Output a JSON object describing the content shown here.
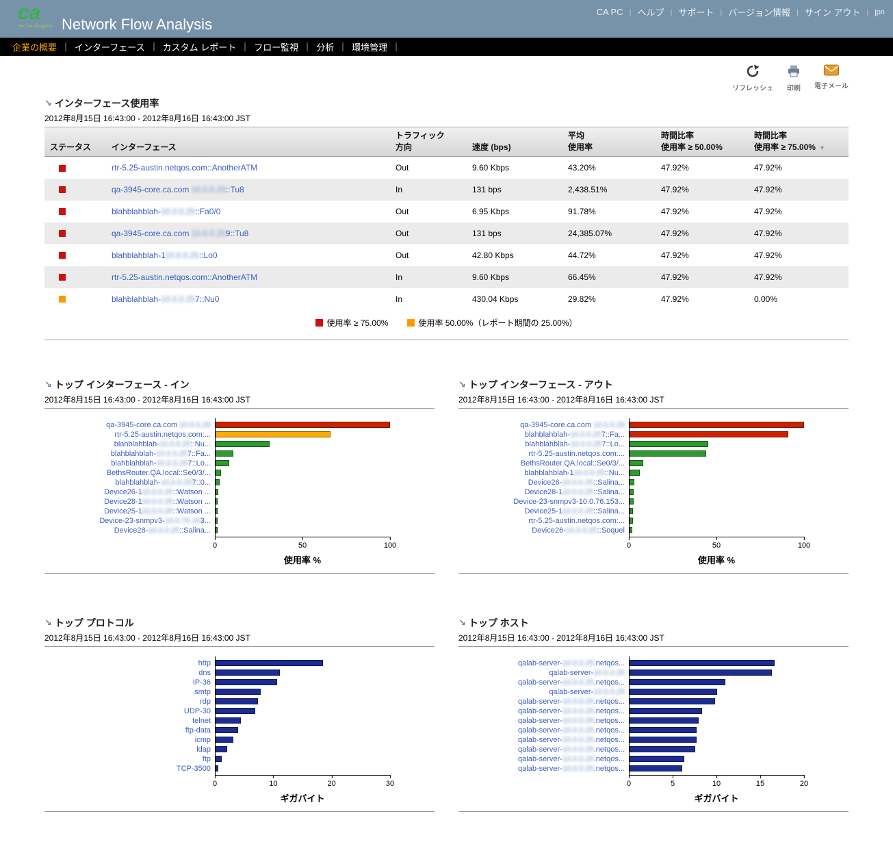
{
  "header": {
    "logo_text": "ca",
    "logo_sub": "technologies",
    "title": "Network Flow Analysis",
    "links": [
      "CA PC",
      "ヘルプ",
      "サポート",
      "バージョン情報",
      "サイン アウト"
    ],
    "locale": "jpn"
  },
  "nav": {
    "items": [
      "企業の概要",
      "インターフェース",
      "カスタム レポート",
      "フロー監視",
      "分析",
      "環境管理"
    ],
    "active_index": 0
  },
  "toolbar": {
    "refresh_label": "リフレッシュ",
    "print_label": "印刷",
    "email_label": "電子メール"
  },
  "colors": {
    "status_red": "#cc1111",
    "status_orange": "#ff9900",
    "bar_red": "#cc2200",
    "bar_orange": "#ffaa00",
    "bar_green": "#2e9b2e",
    "bar_blue": "#1b2d91"
  },
  "interface_table": {
    "title": "インターフェース使用率",
    "date_range": "2012年8月15日 16:43:00 - 2012年8月16日 16:43:00 JST",
    "columns": [
      {
        "key": "status",
        "lines": [
          "ステータス"
        ]
      },
      {
        "key": "interface",
        "lines": [
          "インターフェース"
        ]
      },
      {
        "key": "direction",
        "lines": [
          "トラフィック",
          "方向"
        ]
      },
      {
        "key": "speed",
        "lines": [
          "速度 (bps)"
        ]
      },
      {
        "key": "avg-util",
        "lines": [
          "平均",
          "使用率"
        ]
      },
      {
        "key": "time-ge-50",
        "lines": [
          "時間比率",
          "使用率 ≥ 50.00%"
        ]
      },
      {
        "key": "time-ge-75",
        "lines": [
          "時間比率",
          "使用率 ≥ 75.00%"
        ],
        "sort_arrow": true
      }
    ],
    "rows": [
      {
        "status": "status_red",
        "pre": "rtr-5.25-austin.netqos.com::AnotherATM",
        "blur": "",
        "post": "",
        "direction": "Out",
        "speed": "9.60 Kbps",
        "avg": "43.20%",
        "t50": "47.92%",
        "t75": "47.92%"
      },
      {
        "status": "status_red",
        "pre": "qa-3945-core.ca.com ",
        "blur": "10.0.0.25",
        "post": "::Tu8",
        "direction": "In",
        "speed": "131 bps",
        "avg": "2,438.51%",
        "t50": "47.92%",
        "t75": "47.92%"
      },
      {
        "status": "status_red",
        "pre": "blahblahblah-",
        "blur": "10.0.0.25",
        "post": "::Fa0/0",
        "direction": "Out",
        "speed": "6.95 Kbps",
        "avg": "91.78%",
        "t50": "47.92%",
        "t75": "47.92%"
      },
      {
        "status": "status_red",
        "pre": "qa-3945-core.ca.com ",
        "blur": "10.0.0.25",
        "post": "9::Tu8",
        "direction": "Out",
        "speed": "131 bps",
        "avg": "24,385.07%",
        "t50": "47.92%",
        "t75": "47.92%"
      },
      {
        "status": "status_red",
        "pre": "blahblahblah-1",
        "blur": "10.0.0.25",
        "post": "::Lo0",
        "direction": "Out",
        "speed": "42.80 Kbps",
        "avg": "44.72%",
        "t50": "47.92%",
        "t75": "47.92%"
      },
      {
        "status": "status_red",
        "pre": "rtr-5.25-austin.netqos.com::AnotherATM",
        "blur": "",
        "post": "",
        "direction": "In",
        "speed": "9.60 Kbps",
        "avg": "66.45%",
        "t50": "47.92%",
        "t75": "47.92%"
      },
      {
        "status": "status_orange",
        "pre": "blahblahblah-",
        "blur": "10.0.0.25",
        "post": "7::Nu0",
        "direction": "In",
        "speed": "430.04 Kbps",
        "avg": "29.82%",
        "t50": "47.92%",
        "t75": "0.00%"
      }
    ],
    "legend": [
      {
        "color_key": "status_red",
        "label": "使用率 ≥ 75.00%"
      },
      {
        "color_key": "status_orange",
        "label": "使用率 50.00%（レポート期間の 25.00%）"
      }
    ]
  },
  "chart_data": [
    {
      "type": "bar",
      "orientation": "horizontal",
      "title": "トップ インターフェース - イン",
      "date_range": "2012年8月15日 16:43:00 - 2012年8月16日 16:43:00 JST",
      "xlabel": "使用率 %",
      "xlim": [
        0,
        100
      ],
      "xticks": [
        0,
        50,
        100
      ],
      "bars": [
        {
          "pre": "qa-3945-core.ca.com ",
          "blur": "10.0.0.25",
          "post": "",
          "v": 100,
          "c": "bar_red"
        },
        {
          "pre": "rtr-5.25-austin.netqos.com:...",
          "blur": "",
          "post": "",
          "v": 66,
          "c": "bar_orange"
        },
        {
          "pre": "blahblahblah-",
          "blur": "10.0.0.25",
          "post": "::Nu...",
          "v": 31,
          "c": "bar_green"
        },
        {
          "pre": "blahblahblah-",
          "blur": "10.0.0.25",
          "post": "7::Fa...",
          "v": 10,
          "c": "bar_green"
        },
        {
          "pre": "blahblahblah-",
          "blur": "10.0.0.25",
          "post": "7::Lo...",
          "v": 8,
          "c": "bar_green"
        },
        {
          "pre": "BethsRouter.QA.local::Se0/3/...",
          "blur": "",
          "post": "",
          "v": 3,
          "c": "bar_green"
        },
        {
          "pre": "blahblahblah-",
          "blur": "10.0.0.25",
          "post": "7::0...",
          "v": 2.4,
          "c": "bar_green"
        },
        {
          "pre": "Device26-1",
          "blur": "10.0.0.25",
          "post": "::Watson ...",
          "v": 1.4,
          "c": "bar_green"
        },
        {
          "pre": "Device28-1",
          "blur": "10.0.0.25",
          "post": "::Watson ...",
          "v": 1.3,
          "c": "bar_green"
        },
        {
          "pre": "Device25-1",
          "blur": "10.0.0.25",
          "post": "::Watson ...",
          "v": 1.2,
          "c": "bar_green"
        },
        {
          "pre": "Device-23-snmpv3-",
          "blur": "10.0.76.15",
          "post": "3...",
          "v": 1.1,
          "c": "bar_green"
        },
        {
          "pre": "Device28-",
          "blur": "10.0.0.25",
          "post": "::Salina...",
          "v": 1.0,
          "c": "bar_green"
        }
      ]
    },
    {
      "type": "bar",
      "orientation": "horizontal",
      "title": "トップ インターフェース - アウト",
      "date_range": "2012年8月15日 16:43:00 - 2012年8月16日 16:43:00 JST",
      "xlabel": "使用率 %",
      "xlim": [
        0,
        100
      ],
      "xticks": [
        0,
        50,
        100
      ],
      "bars": [
        {
          "pre": "qa-3945-core.ca.com ",
          "blur": "10.0.0.25",
          "post": "",
          "v": 100,
          "c": "bar_red"
        },
        {
          "pre": "blahblahblah-",
          "blur": "10.0.0.25",
          "post": "7::Fa...",
          "v": 91,
          "c": "bar_red"
        },
        {
          "pre": "blahblahblah-",
          "blur": "10.0.0.25",
          "post": "7::Lo...",
          "v": 45,
          "c": "bar_green"
        },
        {
          "pre": "rtr-5.25-austin.netqos.com:...",
          "blur": "",
          "post": "",
          "v": 44,
          "c": "bar_green"
        },
        {
          "pre": "BethsRouter.QA.local::Se0/3/...",
          "blur": "",
          "post": "",
          "v": 8,
          "c": "bar_green"
        },
        {
          "pre": "blahblahblah-1",
          "blur": "10.0.0.25",
          "post": "::Nu...",
          "v": 6,
          "c": "bar_green"
        },
        {
          "pre": "Device26-",
          "blur": "10.0.0.25",
          "post": "::Salina...",
          "v": 2.6,
          "c": "bar_green"
        },
        {
          "pre": "Device28-1",
          "blur": "10.0.0.25",
          "post": "::Salina...",
          "v": 2.4,
          "c": "bar_green"
        },
        {
          "pre": "Device-23-snmpv3-10.0.76.153...",
          "blur": "",
          "post": "",
          "v": 2.2,
          "c": "bar_green"
        },
        {
          "pre": "Device25-1",
          "blur": "10.0.0.25",
          "post": "::Salina...",
          "v": 2.0,
          "c": "bar_green"
        },
        {
          "pre": "rtr-5.25-austin.netqos.com:...",
          "blur": "",
          "post": "",
          "v": 1.8,
          "c": "bar_green"
        },
        {
          "pre": "Device26-",
          "blur": "10.0.0.25",
          "post": "::Soquel",
          "v": 1.6,
          "c": "bar_green"
        }
      ]
    },
    {
      "type": "bar",
      "orientation": "horizontal",
      "title": "トップ プロトコル",
      "date_range": "2012年8月15日 16:43:00 - 2012年8月16日 16:43:00 JST",
      "xlabel": "ギガバイト",
      "xlim": [
        0,
        30
      ],
      "xticks": [
        0,
        10,
        20,
        30
      ],
      "bars": [
        {
          "pre": "http",
          "blur": "",
          "post": "",
          "v": 18.5,
          "c": "bar_blue"
        },
        {
          "pre": "dns",
          "blur": "",
          "post": "",
          "v": 11,
          "c": "bar_blue"
        },
        {
          "pre": "IP-36",
          "blur": "",
          "post": "",
          "v": 10.6,
          "c": "bar_blue"
        },
        {
          "pre": "smtp",
          "blur": "",
          "post": "",
          "v": 7.8,
          "c": "bar_blue"
        },
        {
          "pre": "rdp",
          "blur": "",
          "post": "",
          "v": 7.3,
          "c": "bar_blue"
        },
        {
          "pre": "UDP-30",
          "blur": "",
          "post": "",
          "v": 6.8,
          "c": "bar_blue"
        },
        {
          "pre": "telnet",
          "blur": "",
          "post": "",
          "v": 4.4,
          "c": "bar_blue"
        },
        {
          "pre": "ftp-data",
          "blur": "",
          "post": "",
          "v": 3.9,
          "c": "bar_blue"
        },
        {
          "pre": "icmp",
          "blur": "",
          "post": "",
          "v": 3.0,
          "c": "bar_blue"
        },
        {
          "pre": "ldap",
          "blur": "",
          "post": "",
          "v": 2.0,
          "c": "bar_blue"
        },
        {
          "pre": "ftp",
          "blur": "",
          "post": "",
          "v": 1.1,
          "c": "bar_blue"
        },
        {
          "pre": "TCP-3500",
          "blur": "",
          "post": "",
          "v": 0.5,
          "c": "bar_blue"
        }
      ]
    },
    {
      "type": "bar",
      "orientation": "horizontal",
      "title": "トップ ホスト",
      "date_range": "2012年8月15日 16:43:00 - 2012年8月16日 16:43:00 JST",
      "xlabel": "ギガバイト",
      "xlim": [
        0,
        20
      ],
      "xticks": [
        0,
        5,
        10,
        15,
        20
      ],
      "bars": [
        {
          "pre": "qalab-server-",
          "blur": "10.0.0.25",
          "post": ".netqos...",
          "v": 16.6,
          "c": "bar_blue"
        },
        {
          "pre": "qalab-server-",
          "blur": "10.0.0.25",
          "post": "",
          "v": 16.3,
          "c": "bar_blue"
        },
        {
          "pre": "qalab-server-",
          "blur": "10.0.0.25",
          "post": ".netqos...",
          "v": 11,
          "c": "bar_blue"
        },
        {
          "pre": "qalab-server-",
          "blur": "10.0.0.25",
          "post": "",
          "v": 10,
          "c": "bar_blue"
        },
        {
          "pre": "qalab-server-",
          "blur": "10.0.0.25",
          "post": ".netqos...",
          "v": 9.8,
          "c": "bar_blue"
        },
        {
          "pre": "qalab-server-",
          "blur": "10.0.0.25",
          "post": ".netqos...",
          "v": 8.3,
          "c": "bar_blue"
        },
        {
          "pre": "qalab-server-",
          "blur": "10.0.0.25",
          "post": ".netqos...",
          "v": 7.9,
          "c": "bar_blue"
        },
        {
          "pre": "qalab-server-",
          "blur": "10.0.0.25",
          "post": ".netqos...",
          "v": 7.7,
          "c": "bar_blue"
        },
        {
          "pre": "qalab-server-",
          "blur": "10.0.0.25",
          "post": ".netqos...",
          "v": 7.7,
          "c": "bar_blue"
        },
        {
          "pre": "qalab-server-",
          "blur": "10.0.0.25",
          "post": ".netqos...",
          "v": 7.5,
          "c": "bar_blue"
        },
        {
          "pre": "qalab-server-",
          "blur": "10.0.0.25",
          "post": ".netqos...",
          "v": 6.3,
          "c": "bar_blue"
        },
        {
          "pre": "qalab-server-",
          "blur": "10.0.0.25",
          "post": ".netqos...",
          "v": 6.0,
          "c": "bar_blue"
        }
      ]
    }
  ]
}
